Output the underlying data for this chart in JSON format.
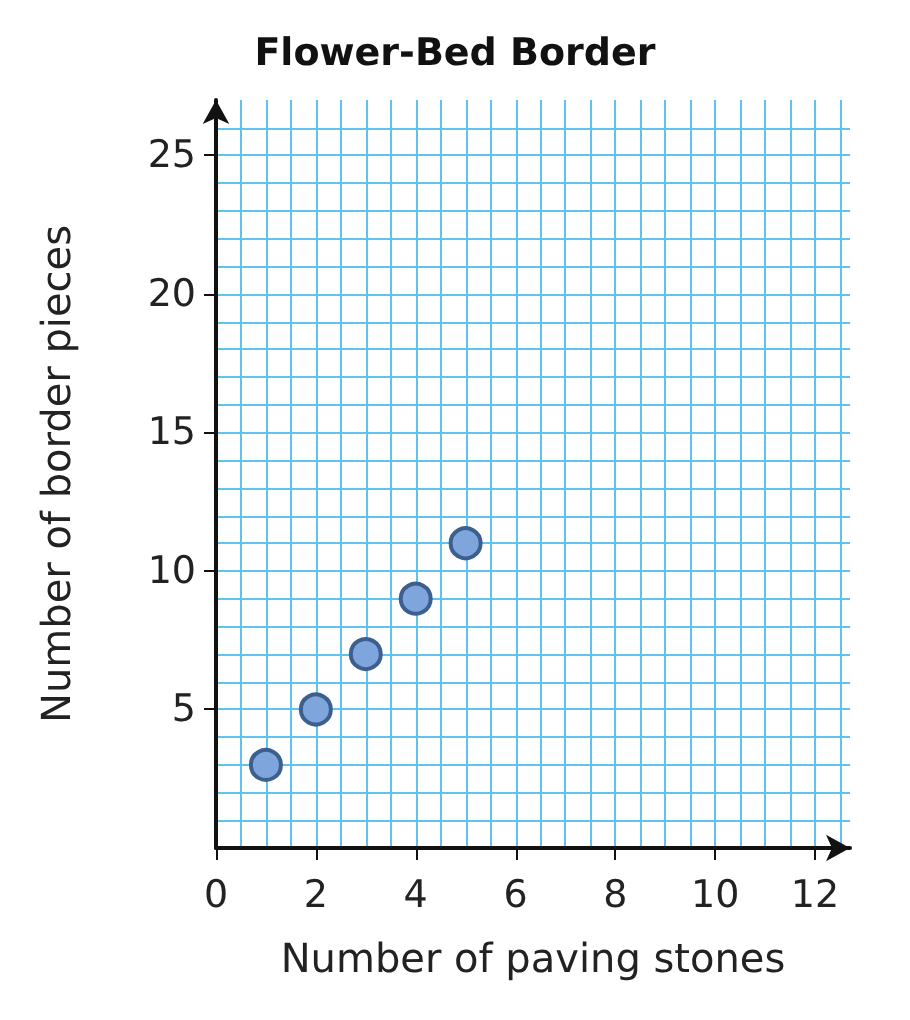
{
  "chart_data": {
    "type": "scatter",
    "title": "Flower-Bed Border",
    "xlabel": "Number of paving stones",
    "ylabel": "Number of border pieces",
    "x": [
      1,
      2,
      3,
      4,
      5
    ],
    "values": [
      3,
      5,
      7,
      9,
      11
    ],
    "color": "#7fa6dc",
    "marker": "circle",
    "xlim": [
      0,
      12.7
    ],
    "xticks": [
      0,
      2,
      4,
      6,
      8,
      10,
      12
    ],
    "ylim": [
      0,
      27
    ],
    "yticks": [
      5,
      10,
      15,
      20,
      25
    ],
    "grid": true
  }
}
